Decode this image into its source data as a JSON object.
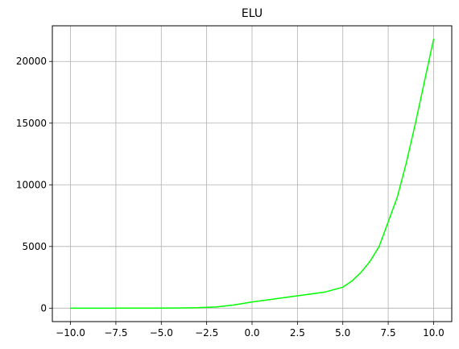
{
  "chart_data": {
    "type": "line",
    "title": "ELU",
    "xlabel": "",
    "ylabel": "",
    "xlim": [
      -11.0,
      11.0
    ],
    "ylim": [
      -1090,
      22890
    ],
    "grid": true,
    "legend": "none",
    "x_ticks": [
      -10.0,
      -7.5,
      -5.0,
      -2.5,
      0.0,
      2.5,
      5.0,
      7.5,
      10.0
    ],
    "x_tick_labels": [
      "−10.0",
      "−7.5",
      "−5.0",
      "−2.5",
      "0.0",
      "2.5",
      "5.0",
      "7.5",
      "10.0"
    ],
    "y_ticks": [
      0,
      5000,
      10000,
      15000,
      20000
    ],
    "y_tick_labels": [
      "0",
      "5000",
      "10000",
      "15000",
      "20000"
    ],
    "series": [
      {
        "color": "#00ff00",
        "x": [
          -10.0,
          -9.0,
          -8.0,
          -7.0,
          -6.0,
          -5.0,
          -4.0,
          -3.0,
          -2.0,
          -1.0,
          0.0,
          1.0,
          2.0,
          3.0,
          4.0,
          5.0,
          5.5,
          6.0,
          6.5,
          7.0,
          7.25,
          7.5,
          7.75,
          8.0,
          8.25,
          8.5,
          8.75,
          9.0,
          9.25,
          9.5,
          9.75,
          10.0
        ],
        "y": [
          0,
          0,
          0,
          1,
          2,
          5,
          13,
          35,
          95,
          260,
          500,
          700,
          900,
          1100,
          1300,
          1700,
          2200,
          2900,
          3800,
          5000,
          6000,
          7000,
          8000,
          9000,
          10400,
          11800,
          13400,
          15000,
          16700,
          18400,
          20100,
          21800
        ]
      }
    ]
  }
}
